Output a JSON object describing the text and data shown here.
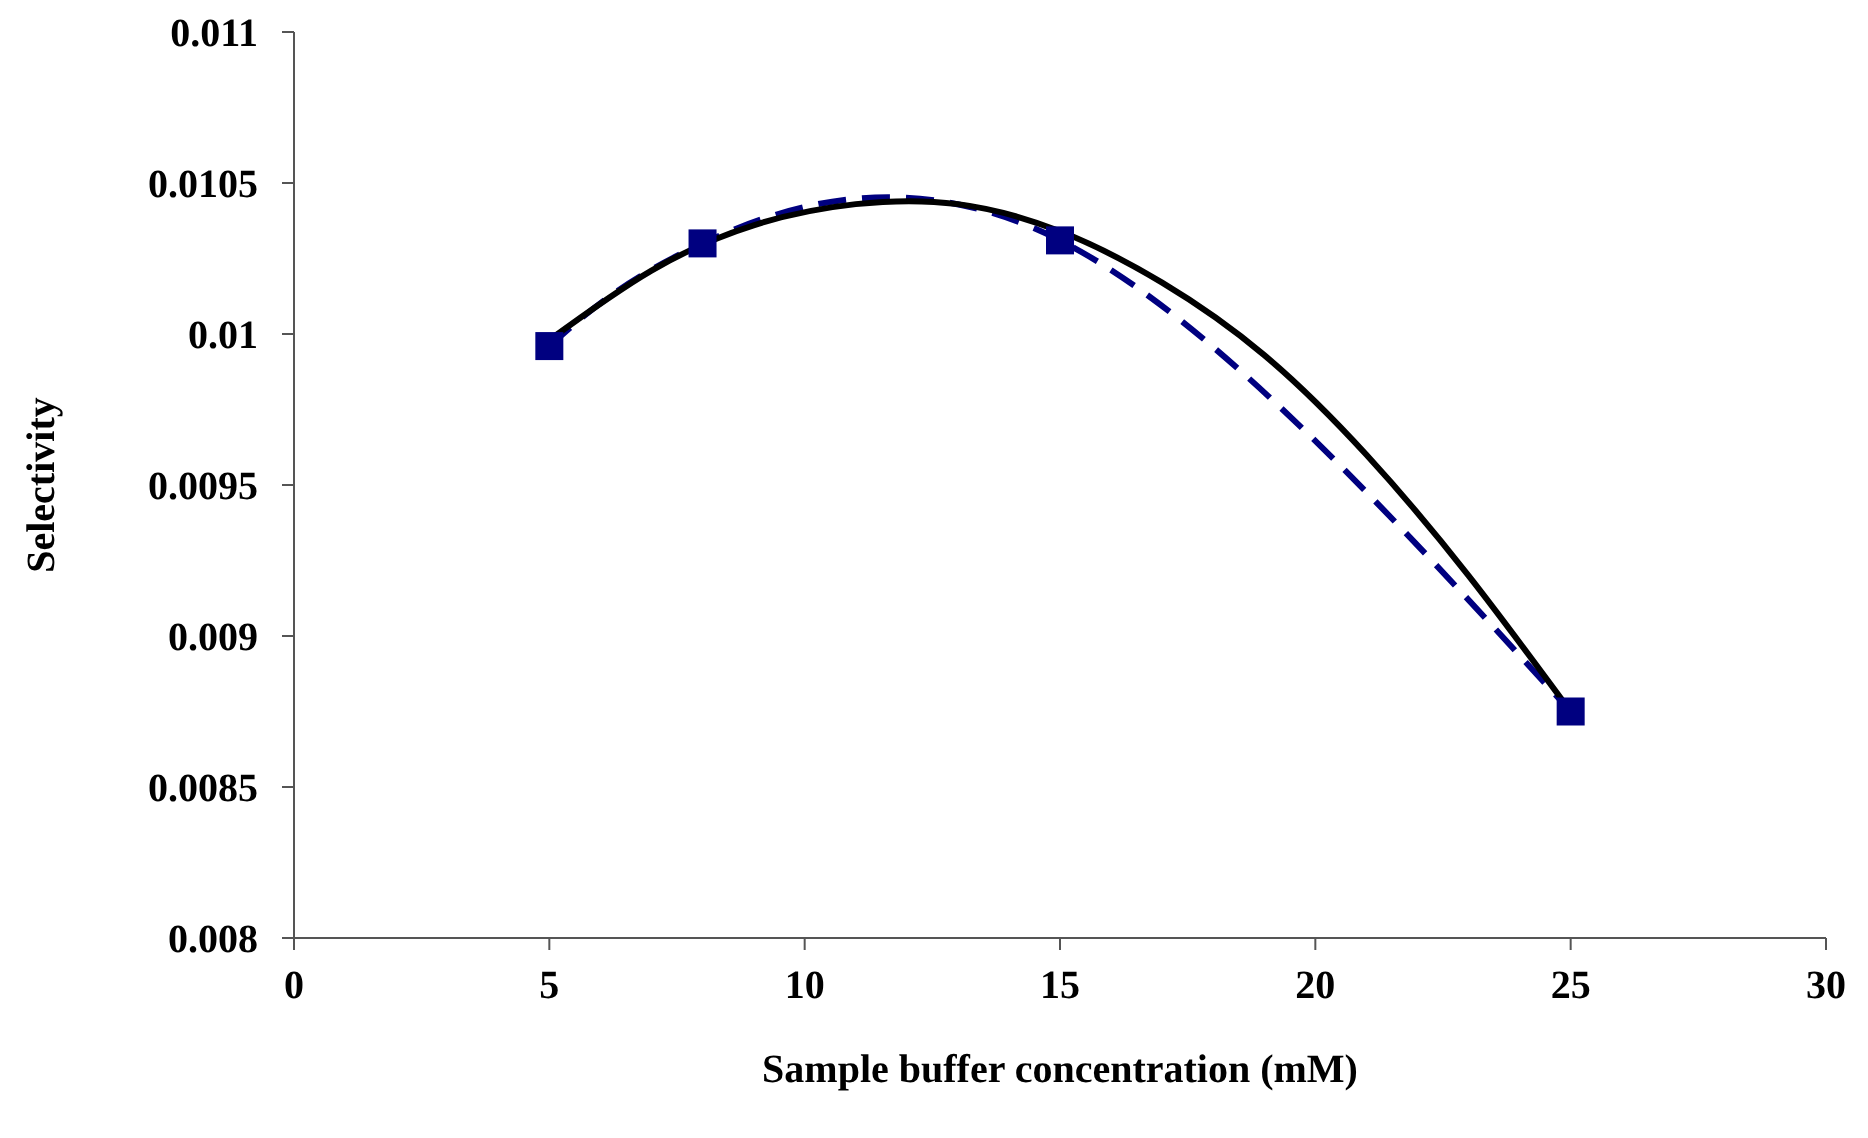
{
  "chart_data": {
    "type": "line",
    "xlabel": "Sample buffer concentration (mM)",
    "ylabel": "Selectivity",
    "xlim": [
      0,
      30
    ],
    "xticks": [
      0,
      5,
      10,
      15,
      20,
      25,
      30
    ],
    "ylim": [
      0.008,
      0.011
    ],
    "yticks": [
      0.008,
      0.0085,
      0.009,
      0.0095,
      0.01,
      0.0105,
      0.011
    ],
    "grid": false,
    "series": [
      {
        "color": "#000080",
        "line_style": "dashed",
        "marker": "square",
        "x": [
          5,
          8,
          15,
          25
        ],
        "values": [
          0.00996,
          0.0103,
          0.01031,
          0.00875
        ]
      },
      {
        "color": "#000000",
        "line_style": "solid",
        "marker": "none",
        "x": [
          5,
          7,
          9,
          11,
          13,
          15,
          17,
          19,
          21,
          23,
          25
        ],
        "values": [
          0.00998,
          0.01021,
          0.01036,
          0.01043,
          0.01043,
          0.01034,
          0.01017,
          0.00993,
          0.0096,
          0.0092,
          0.00875
        ]
      }
    ]
  }
}
